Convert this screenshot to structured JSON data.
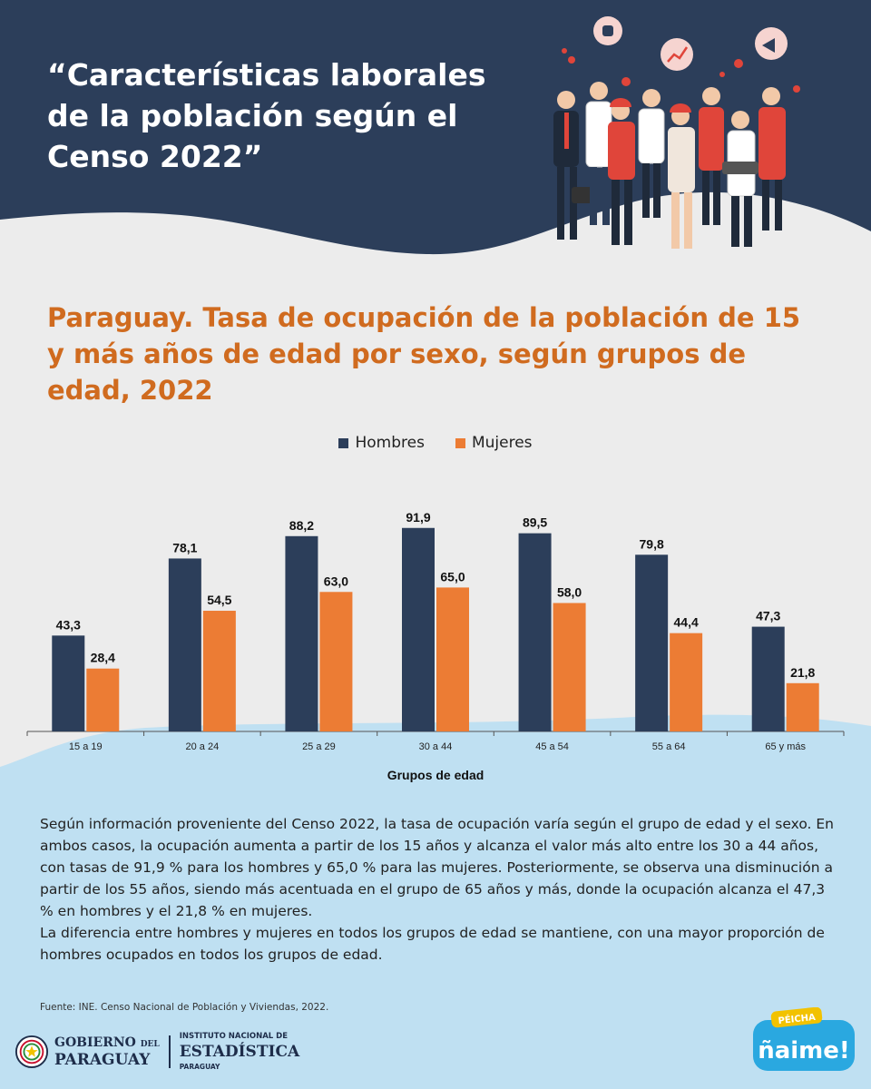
{
  "header": {
    "title_lines": [
      "“Características laborales",
      "de la población según el",
      "Censo 2022”"
    ]
  },
  "chart_title_lines": [
    "Paraguay. Tasa de ocupación de la población de 15",
    "y más años de edad por sexo, según grupos de",
    "edad, 2022"
  ],
  "legend": {
    "items": [
      {
        "label": "Hombres",
        "color": "#2c3e5a"
      },
      {
        "label": "Mujeres",
        "color": "#ec7c34"
      }
    ]
  },
  "chart_data": {
    "type": "bar",
    "categories": [
      "15 a 19",
      "20 a 24",
      "25 a 29",
      "30 a 44",
      "45 a 54",
      "55 a 64",
      "65 y más"
    ],
    "series": [
      {
        "name": "Hombres",
        "values": [
          43.3,
          78.1,
          88.2,
          91.9,
          89.5,
          79.8,
          47.3
        ],
        "labels": [
          "43,3",
          "78,1",
          "88,2",
          "91,9",
          "89,5",
          "79,8",
          "47,3"
        ],
        "color": "#2c3e5a"
      },
      {
        "name": "Mujeres",
        "values": [
          28.4,
          54.5,
          63.0,
          65.0,
          58.0,
          44.4,
          21.8
        ],
        "labels": [
          "28,4",
          "54,5",
          "63,0",
          "65,0",
          "58,0",
          "44,4",
          "21,8"
        ],
        "color": "#ec7c34"
      }
    ],
    "xlabel": "Grupos de edad",
    "ylabel": "",
    "ylim": [
      0,
      100
    ],
    "grid": false,
    "legend_position": "top-center"
  },
  "body": {
    "paragraph1": "Según información proveniente del Censo 2022, la tasa de ocupación varía según el grupo de edad y el sexo. En ambos casos, la ocupación aumenta a partir de los 15 años y alcanza el valor más alto entre los 30 a 44 años, con tasas de 91,9 % para los hombres y 65,0 % para las mujeres. Posteriormente, se observa una disminución a partir de los 55 años, siendo más acentuada en el grupo de 65 años y más, donde la ocupación alcanza el 47,3 % en hombres y el 21,8 % en mujeres.",
    "paragraph2": "La diferencia entre hombres y mujeres en todos los grupos de edad se mantiene, con una mayor proporción de hombres ocupados en todos los grupos de edad."
  },
  "source": "Fuente: INE. Censo Nacional de Población y Viviendas, 2022.",
  "footer": {
    "gov_line1_main": "GOBIERNO",
    "gov_line1_small": "DEL",
    "gov_line2": "PARAGUAY",
    "ine_line1": "INSTITUTO NACIONAL DE",
    "ine_line2": "ESTADÍSTICA",
    "ine_line3": "PARAGUAY",
    "badge_top": "PÉICHA",
    "badge_main": "ñaime!"
  },
  "colors": {
    "header_bg": "#2c3e5a",
    "title_orange": "#d06b1f",
    "light_blue": "#bfe0f2",
    "gray_bg": "#ececec"
  }
}
